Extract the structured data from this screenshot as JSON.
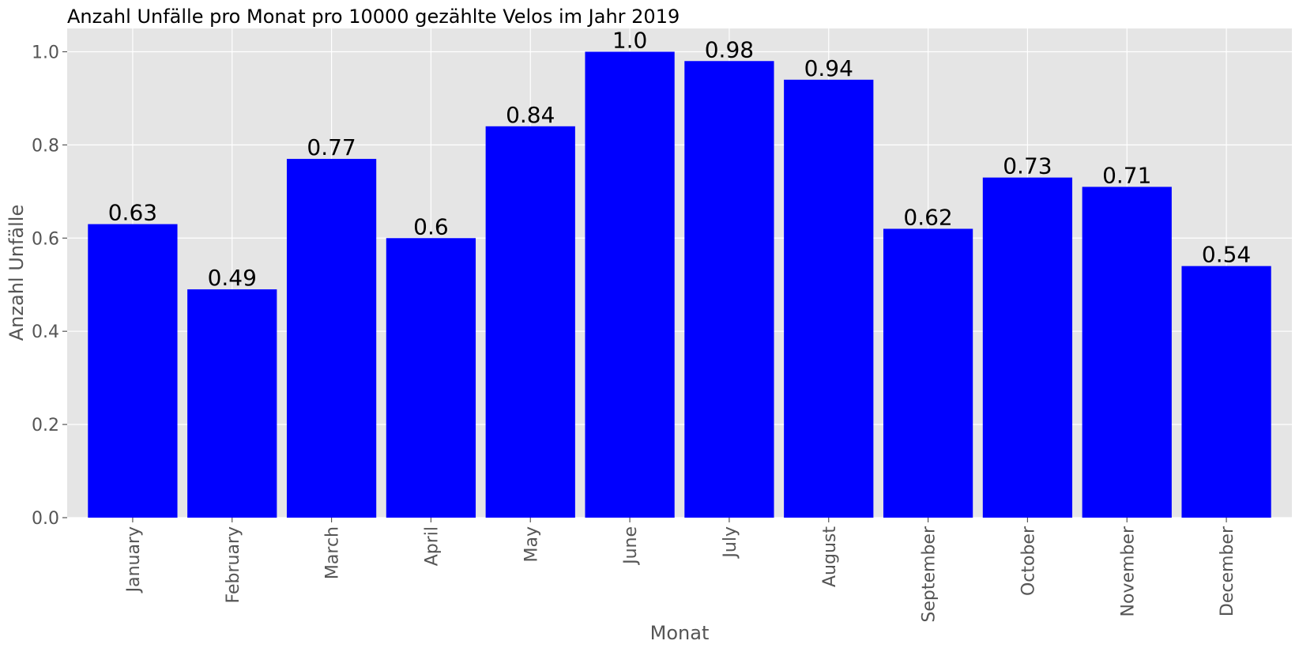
{
  "chart_data": {
    "type": "bar",
    "title": "Anzahl Unfälle pro Monat pro 10000 gezählte Velos im Jahr 2019",
    "xlabel": "Monat",
    "ylabel": "Anzahl Unfälle",
    "categories": [
      "January",
      "February",
      "March",
      "April",
      "May",
      "June",
      "July",
      "August",
      "September",
      "October",
      "November",
      "December"
    ],
    "values": [
      0.63,
      0.49,
      0.77,
      0.6,
      0.84,
      1.0,
      0.98,
      0.94,
      0.62,
      0.73,
      0.71,
      0.54
    ],
    "value_labels": [
      "0.63",
      "0.49",
      "0.77",
      "0.6",
      "0.84",
      "1.0",
      "0.98",
      "0.94",
      "0.62",
      "0.73",
      "0.71",
      "0.54"
    ],
    "ylim": [
      0,
      1.05
    ],
    "yticks": [
      0.0,
      0.2,
      0.4,
      0.6,
      0.8,
      1.0
    ],
    "ytick_labels": [
      "0.0",
      "0.2",
      "0.4",
      "0.6",
      "0.8",
      "1.0"
    ],
    "grid": true,
    "bar_color": "#0000ff",
    "plot_background": "#e5e5e5",
    "grid_color": "#ffffff"
  }
}
